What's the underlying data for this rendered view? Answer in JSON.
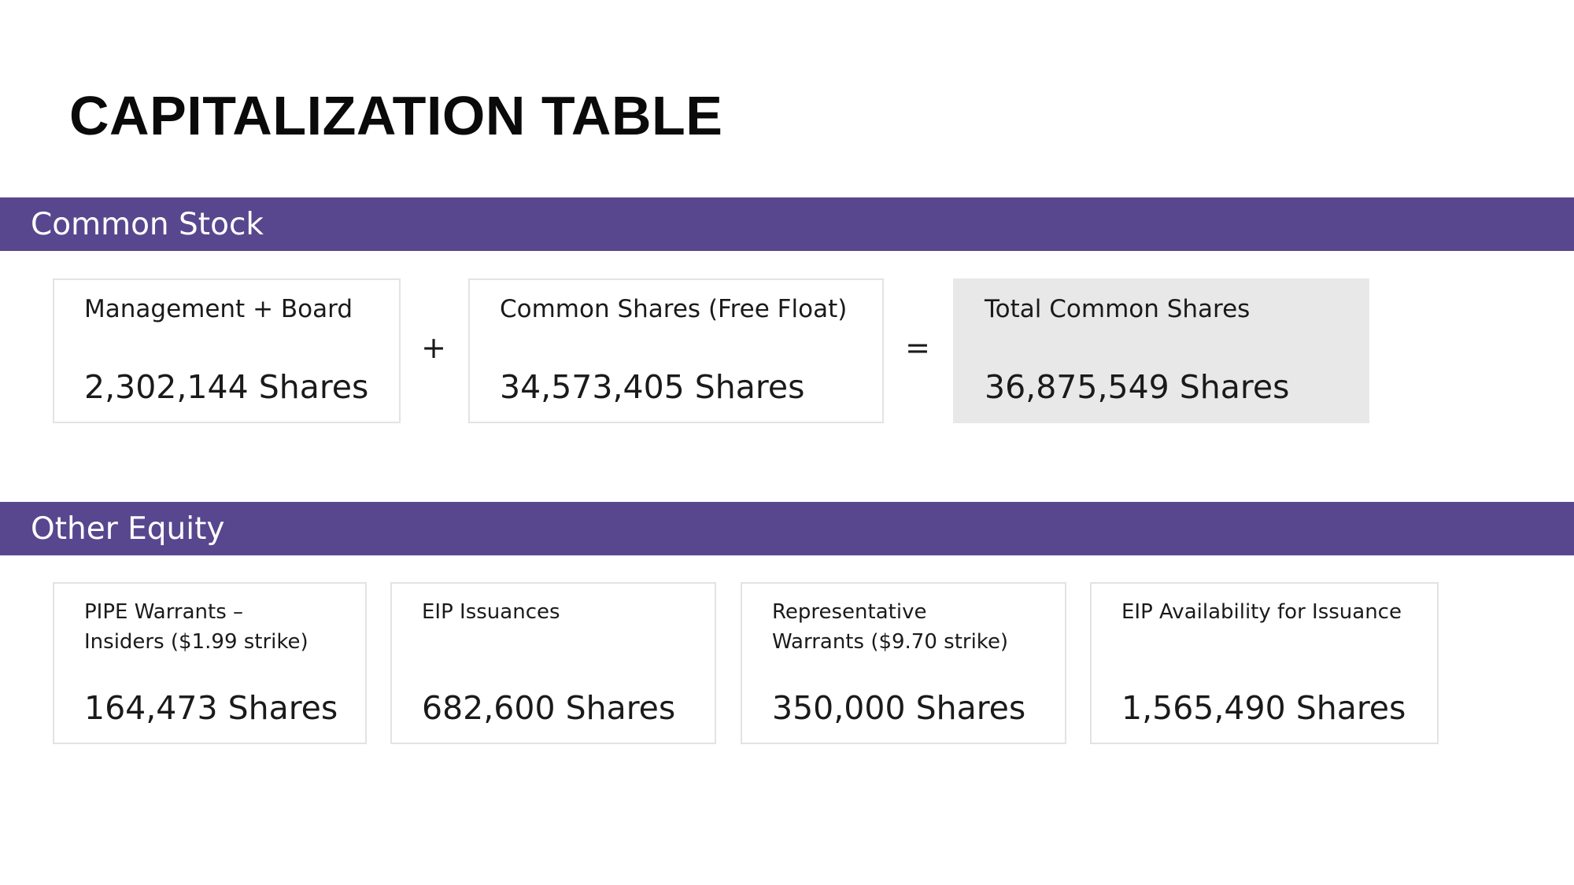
{
  "title": "CAPITALIZATION TABLE",
  "colors": {
    "band": "#58478e",
    "total_card": "#e8e8e8",
    "card_border": "#e3e3e3"
  },
  "common_stock": {
    "heading": "Common Stock",
    "cards": [
      {
        "label": "Management + Board",
        "value": "2,302,144 Shares"
      },
      {
        "label": "Common Shares (Free Float)",
        "value": "34,573,405 Shares"
      },
      {
        "label": "Total Common Shares",
        "value": "36,875,549 Shares"
      }
    ],
    "operators": [
      "+",
      "="
    ]
  },
  "other_equity": {
    "heading": "Other Equity",
    "cards": [
      {
        "label": "PIPE Warrants – Insiders ($1.99 strike)",
        "value": "164,473 Shares"
      },
      {
        "label": "EIP Issuances",
        "value": "682,600 Shares"
      },
      {
        "label": "Representative Warrants ($9.70 strike)",
        "value": "350,000 Shares"
      },
      {
        "label": "EIP Availability for Issuance",
        "value": "1,565,490 Shares"
      }
    ]
  }
}
